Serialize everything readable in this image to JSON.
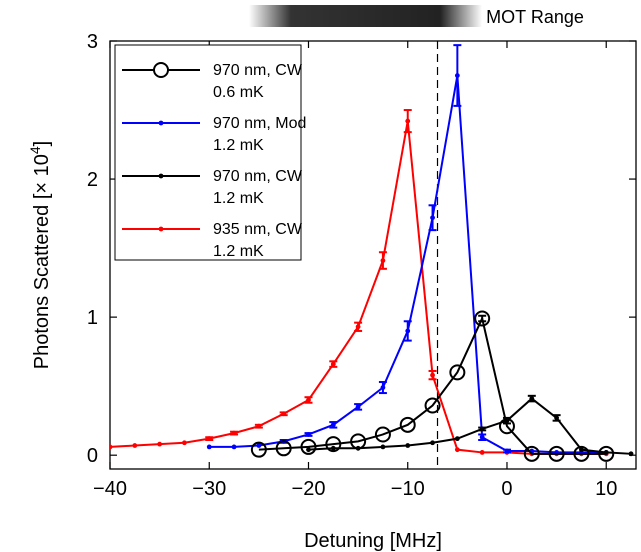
{
  "chart_data": {
    "type": "line",
    "title": "",
    "xlabel": "Detuning [MHz]",
    "ylabel_main": "Photons Scattered [× 10",
    "ylabel_exp": "4",
    "ylabel_close": "]",
    "xlim": [
      -40,
      13
    ],
    "ylim": [
      -0.1,
      3
    ],
    "xticks": [
      -40,
      -30,
      -20,
      -10,
      0,
      10
    ],
    "xtick_labels": [
      "−40",
      "−30",
      "−20",
      "−10",
      "0",
      "10"
    ],
    "yticks": [
      0,
      1,
      2,
      3
    ],
    "ytick_labels": [
      "0",
      "1",
      "2",
      "3"
    ],
    "grid": false,
    "legend_position": "top-left",
    "vertical_dashed_line_x": -7,
    "mot_range_label": "MOT Range",
    "mot_range_x": [
      -26,
      -2.5
    ],
    "series": [
      {
        "name_line1": "970 nm, CW",
        "name_line2": "0.6 mK",
        "color": "#000000",
        "marker": "circle-open",
        "x": [
          -25,
          -22.5,
          -20,
          -17.5,
          -15,
          -12.5,
          -10,
          -7.5,
          -5,
          -2.5,
          0,
          2.5,
          5,
          7.5,
          10
        ],
        "y": [
          0.04,
          0.05,
          0.06,
          0.08,
          0.1,
          0.15,
          0.22,
          0.36,
          0.6,
          0.99,
          0.21,
          0.01,
          0.01,
          0.01,
          0.01
        ],
        "err": [
          0,
          0,
          0,
          0,
          0,
          0,
          0,
          0,
          0,
          0.02,
          0,
          0,
          0,
          0,
          0
        ]
      },
      {
        "name_line1": "970 nm, Mod",
        "name_line2": "1.2 mK",
        "color": "#0000ff",
        "marker": "dot",
        "x": [
          -30,
          -27.5,
          -25,
          -22.5,
          -20,
          -17.5,
          -15,
          -12.5,
          -10,
          -7.5,
          -5,
          -2.5,
          0,
          2.5,
          5,
          7.5,
          10
        ],
        "y": [
          0.06,
          0.06,
          0.07,
          0.1,
          0.15,
          0.22,
          0.35,
          0.49,
          0.9,
          1.72,
          2.75,
          0.13,
          0.03,
          0.03,
          0.02,
          0.02,
          0.02
        ],
        "err": [
          0,
          0,
          0,
          0.01,
          0.01,
          0.02,
          0.02,
          0.04,
          0.07,
          0.09,
          0.22,
          0.02,
          0.01,
          0,
          0,
          0,
          0
        ]
      },
      {
        "name_line1": "970 nm, CW",
        "name_line2": "1.2 mK",
        "color": "#000000",
        "marker": "dot",
        "x": [
          -20,
          -17.5,
          -15,
          -12.5,
          -10,
          -7.5,
          -5,
          -2.5,
          0,
          2.5,
          5,
          7.5,
          10,
          12.5
        ],
        "y": [
          0.04,
          0.05,
          0.05,
          0.06,
          0.07,
          0.09,
          0.12,
          0.19,
          0.25,
          0.41,
          0.27,
          0.04,
          0.02,
          0.01
        ],
        "err": [
          0,
          0,
          0,
          0,
          0,
          0,
          0,
          0.01,
          0.02,
          0.02,
          0.02,
          0,
          0,
          0
        ]
      },
      {
        "name_line1": "935 nm, CW",
        "name_line2": "1.2 mK",
        "color": "#ff0000",
        "marker": "dot",
        "x": [
          -40,
          -37.5,
          -35,
          -32.5,
          -30,
          -27.5,
          -25,
          -22.5,
          -20,
          -17.5,
          -15,
          -12.5,
          -10,
          -7.5,
          -5,
          -2.5,
          0,
          2.5,
          5,
          7.5,
          10
        ],
        "y": [
          0.06,
          0.07,
          0.08,
          0.09,
          0.12,
          0.16,
          0.21,
          0.3,
          0.4,
          0.66,
          0.93,
          1.41,
          2.42,
          0.58,
          0.04,
          0.02,
          0.02,
          0.01,
          0.01,
          0.01,
          0.01
        ],
        "err": [
          0,
          0,
          0,
          0,
          0.01,
          0.01,
          0.01,
          0.01,
          0.02,
          0.02,
          0.03,
          0.06,
          0.08,
          0.03,
          0,
          0,
          0,
          0,
          0,
          0,
          0
        ]
      }
    ]
  }
}
